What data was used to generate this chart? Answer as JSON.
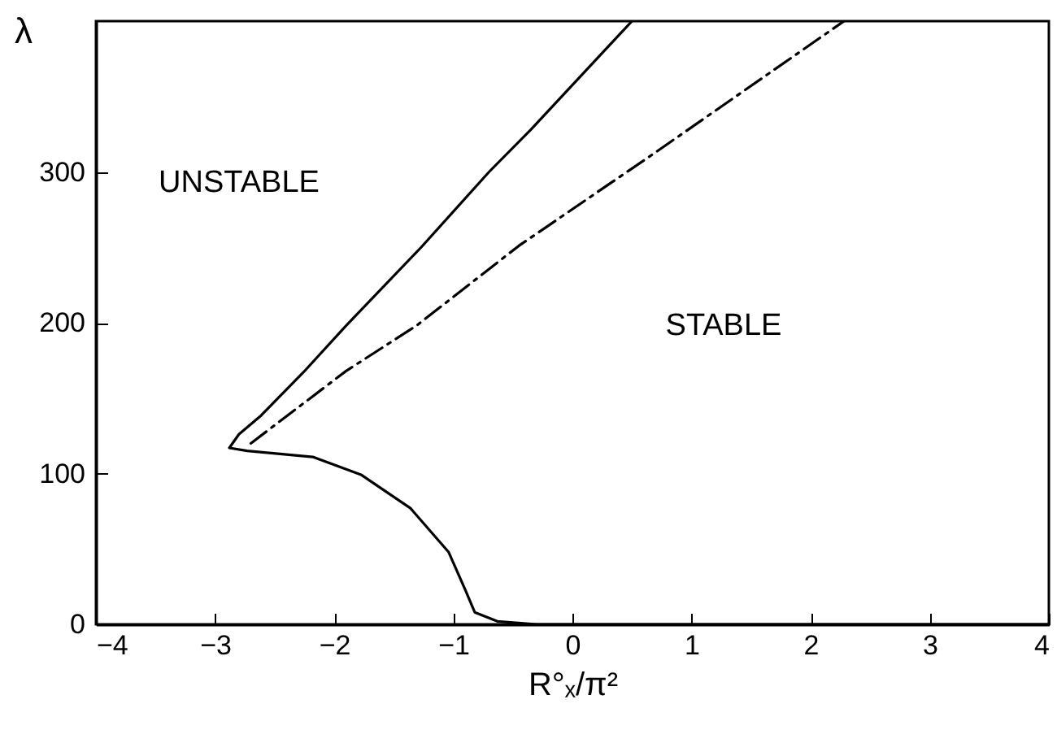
{
  "chart_data": {
    "type": "line",
    "xlabel": "R°ₓ/π²",
    "ylabel": "λ",
    "xlim": [
      -4,
      4
    ],
    "xticks": [
      -4,
      -3,
      -2,
      -1,
      0,
      1,
      2,
      3,
      4
    ],
    "ylim": [
      0,
      400
    ],
    "yticks": [
      0,
      100,
      200,
      300
    ],
    "grid": false,
    "marker": "none",
    "annotations": [
      "UNSTABLE",
      "STABLE"
    ],
    "series": [
      {
        "color": "#000000",
        "line_style": "solid",
        "x": [
          0.5,
          -0.35,
          -0.7,
          -1.27,
          -1.9,
          -2.26,
          -2.62,
          -2.8,
          -2.88,
          -2.73,
          -2.18,
          -1.77,
          -1.36,
          -1.04,
          -0.9,
          -0.82,
          -0.63,
          -0.3,
          4
        ],
        "values": [
          400,
          328,
          300,
          250,
          198,
          167,
          138,
          126,
          117,
          115,
          111,
          99,
          77,
          48,
          23,
          8,
          2,
          0,
          0
        ]
      },
      {
        "color": "#000000",
        "line_style": "dashed",
        "x": [
          -2.7,
          -1.9,
          -1.31,
          -0.45,
          0.68,
          2.28
        ],
        "values": [
          120,
          168,
          198,
          251,
          312,
          400
        ]
      }
    ]
  }
}
